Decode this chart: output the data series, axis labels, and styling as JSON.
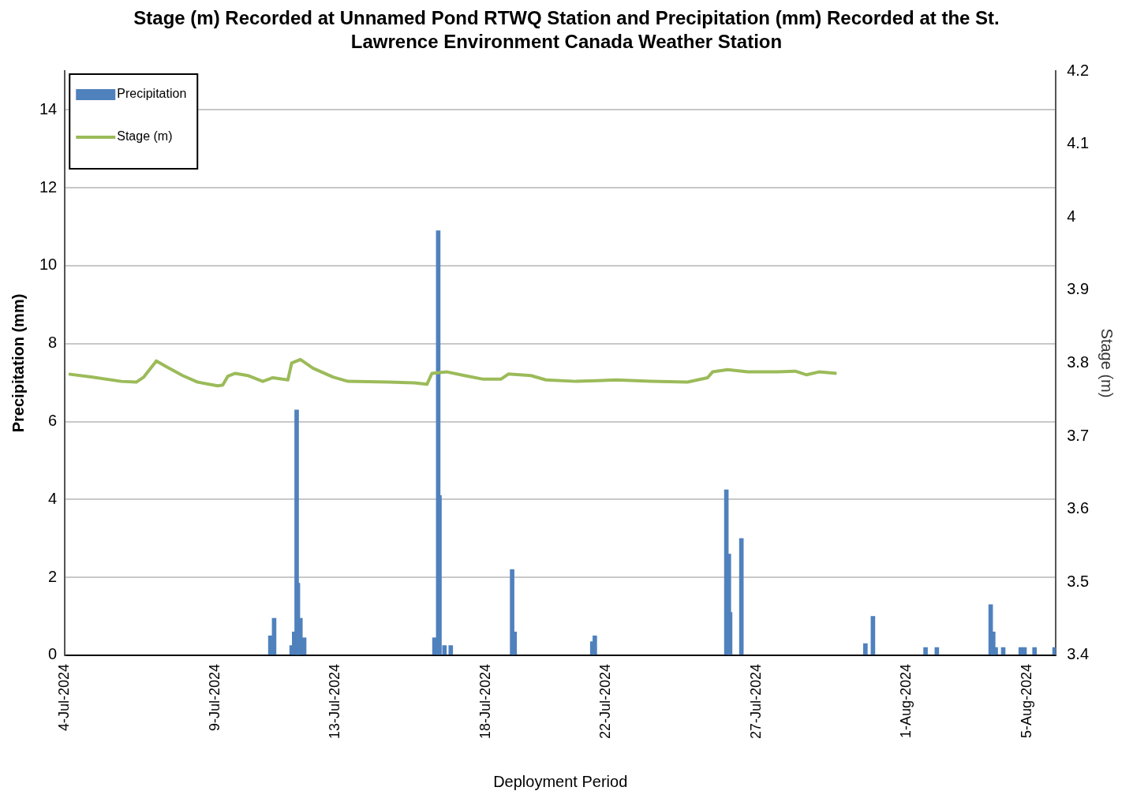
{
  "chart_data": {
    "type": "bar",
    "title": "Stage (m) Recorded at Unnamed Pond RTWQ Station and Precipitation (mm) Recorded at the St. Lawrence Environment Canada Weather Station",
    "xlabel": "Deployment Period",
    "ylabel": "Precipitation (mm)",
    "y2label": "Stage (m)",
    "xlim": [
      "2024-07-04T00:00",
      "2024-08-05T23:00"
    ],
    "xticks": [
      {
        "value": "2024-07-04",
        "label": "4-Jul-2024"
      },
      {
        "value": "2024-07-09",
        "label": "9-Jul-2024"
      },
      {
        "value": "2024-07-13",
        "label": "13-Jul-2024"
      },
      {
        "value": "2024-07-18",
        "label": "18-Jul-2024"
      },
      {
        "value": "2024-07-22",
        "label": "22-Jul-2024"
      },
      {
        "value": "2024-07-27",
        "label": "27-Jul-2024"
      },
      {
        "value": "2024-08-01",
        "label": "1-Aug-2024"
      },
      {
        "value": "2024-08-05",
        "label": "5-Aug-2024"
      }
    ],
    "ylim": [
      0,
      15
    ],
    "yticks": [
      0,
      2,
      4,
      6,
      8,
      10,
      12,
      14
    ],
    "y2lim": [
      3.4,
      4.2
    ],
    "y2ticks": [
      3.4,
      3.5,
      3.6,
      3.7,
      3.8,
      3.9,
      4,
      4.1,
      4.2
    ],
    "grid": "y",
    "legend": "top left",
    "series": [
      {
        "name": "Precipitation",
        "color": "#4f81bd",
        "x": [
          "2024-07-10T20:00",
          "2024-07-10T23:00",
          "2024-07-11T13:00",
          "2024-07-11T15:00",
          "2024-07-11T17:00",
          "2024-07-11T18:00",
          "2024-07-11T20:00",
          "2024-07-11T23:00",
          "2024-07-16T07:00",
          "2024-07-16T10:00",
          "2024-07-16T11:00",
          "2024-07-16T15:00",
          "2024-07-16T20:00",
          "2024-07-18T21:00",
          "2024-07-18T23:00",
          "2024-07-21T13:00",
          "2024-07-21T15:00",
          "2024-07-26T00:00",
          "2024-07-26T02:00",
          "2024-07-26T03:00",
          "2024-07-26T12:00",
          "2024-07-30T15:00",
          "2024-07-30T21:00",
          "2024-08-01T15:00",
          "2024-08-02T00:00",
          "2024-08-03T19:00",
          "2024-08-03T21:00",
          "2024-08-03T23:00",
          "2024-08-04T05:00",
          "2024-08-04T19:00",
          "2024-08-04T22:00",
          "2024-08-05T06:00",
          "2024-08-05T22:00"
        ],
        "values": [
          0.5,
          0.95,
          0.25,
          0.6,
          6.3,
          1.85,
          0.95,
          0.45,
          0.45,
          10.9,
          4.1,
          0.25,
          0.25,
          2.2,
          0.6,
          0.35,
          0.5,
          4.25,
          2.6,
          1.1,
          3.0,
          0.3,
          1.0,
          0.2,
          0.2,
          1.3,
          0.6,
          0.2,
          0.2,
          0.2,
          0.2,
          0.2,
          0.2
        ]
      },
      {
        "name": "Stage (m)",
        "type": "line",
        "axis": "y2",
        "color": "#9bbb59",
        "x": [
          "2024-07-04T03:00",
          "2024-07-04T21:00",
          "2024-07-05T21:00",
          "2024-07-06T09:00",
          "2024-07-06T15:00",
          "2024-07-07T01:00",
          "2024-07-07T09:00",
          "2024-07-07T22:00",
          "2024-07-08T10:00",
          "2024-07-09T02:00",
          "2024-07-09T06:00",
          "2024-07-09T10:00",
          "2024-07-09T16:00",
          "2024-07-10T02:00",
          "2024-07-10T14:00",
          "2024-07-10T22:00",
          "2024-07-11T10:00",
          "2024-07-11T13:00",
          "2024-07-11T20:00",
          "2024-07-12T06:00",
          "2024-07-12T22:00",
          "2024-07-13T10:00",
          "2024-07-14T19:00",
          "2024-07-15T15:00",
          "2024-07-16T01:00",
          "2024-07-16T05:00",
          "2024-07-16T17:00",
          "2024-07-17T07:00",
          "2024-07-17T22:00",
          "2024-07-18T12:00",
          "2024-07-18T18:00",
          "2024-07-19T12:00",
          "2024-07-20T00:00",
          "2024-07-21T00:00",
          "2024-07-22T08:00",
          "2024-07-23T12:00",
          "2024-07-24T17:00",
          "2024-07-25T09:00",
          "2024-07-25T13:00",
          "2024-07-26T01:00",
          "2024-07-26T17:00",
          "2024-07-27T17:00",
          "2024-07-28T07:00",
          "2024-07-28T16:00",
          "2024-07-29T02:00",
          "2024-07-29T16:00"
        ],
        "values": [
          3.785,
          3.781,
          3.775,
          3.774,
          3.781,
          3.803,
          3.795,
          3.783,
          3.774,
          3.769,
          3.77,
          3.782,
          3.786,
          3.783,
          3.775,
          3.78,
          3.777,
          3.8,
          3.805,
          3.793,
          3.781,
          3.775,
          3.774,
          3.773,
          3.771,
          3.786,
          3.788,
          3.783,
          3.778,
          3.778,
          3.785,
          3.783,
          3.777,
          3.775,
          3.777,
          3.775,
          3.774,
          3.78,
          3.788,
          3.791,
          3.788,
          3.788,
          3.789,
          3.784,
          3.788,
          3.786
        ]
      }
    ]
  }
}
